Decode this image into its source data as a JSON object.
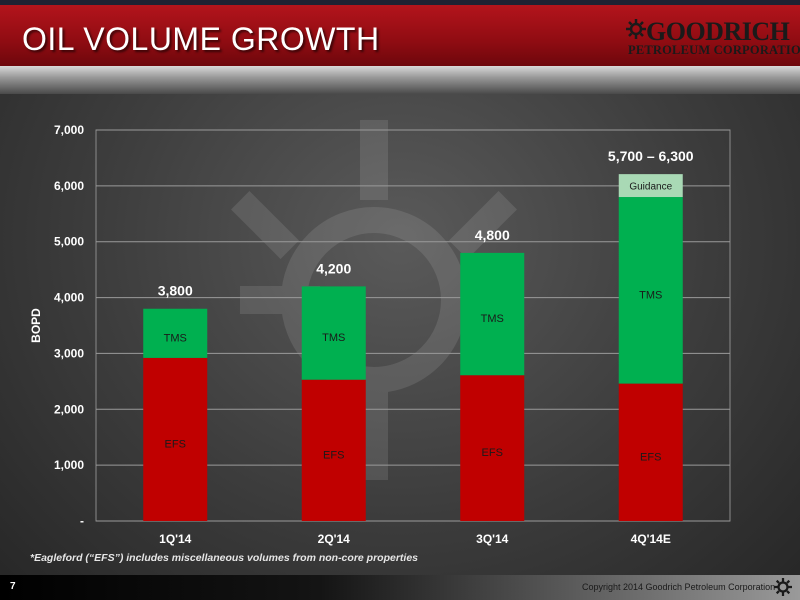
{
  "slide": {
    "title": "OIL VOLUME GROWTH",
    "page_number": "7",
    "footnote": "*Eagleford (“EFS”) includes miscellaneous volumes from non-core properties",
    "copyright": "Copyright 2014 Goodrich Petroleum Corporation"
  },
  "logo": {
    "name": "GOODRICH",
    "subtitle": "PETROLEUM CORPORATION"
  },
  "colors": {
    "efs": "#c00000",
    "tms": "#00b050",
    "guidance": "#a9d9b5",
    "header": "#a50f17"
  },
  "chart_data": {
    "type": "bar",
    "stacked": true,
    "categories": [
      "1Q'14",
      "2Q'14",
      "3Q'14",
      "4Q'14E"
    ],
    "series": [
      {
        "name": "EFS",
        "values": [
          2920,
          2530,
          2610,
          2460
        ]
      },
      {
        "name": "TMS",
        "values": [
          880,
          1670,
          2190,
          3340
        ]
      },
      {
        "name": "Guidance",
        "values": [
          0,
          0,
          0,
          410
        ]
      }
    ],
    "totals": [
      "3,800",
      "4,200",
      "4,800",
      "5,700 – 6,300"
    ],
    "xlabel": "",
    "ylabel": "BOPD",
    "ylim": [
      0,
      7000
    ],
    "yticks": [
      0,
      1000,
      2000,
      3000,
      4000,
      5000,
      6000,
      7000
    ],
    "ytick_labels": [
      "-",
      "1,000",
      "2,000",
      "3,000",
      "4,000",
      "5,000",
      "6,000",
      "7,000"
    ],
    "grid": true,
    "legend": "none"
  }
}
